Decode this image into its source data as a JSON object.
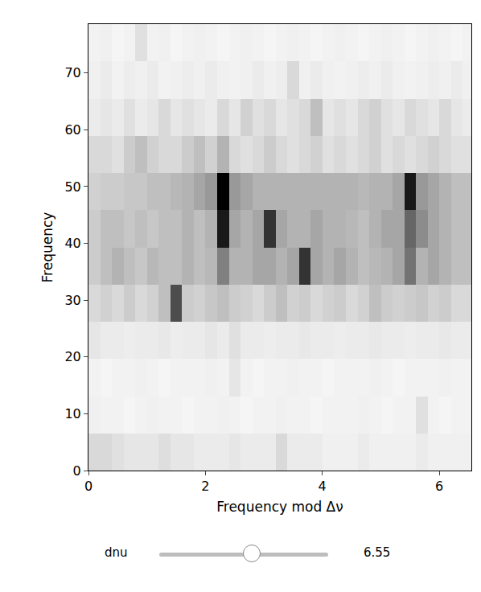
{
  "chart_data": {
    "type": "heatmap",
    "x_label": "Frequency mod Δν",
    "y_label": "Frequency",
    "x": [
      0.1,
      0.3,
      0.5,
      0.7,
      0.9,
      1.1,
      1.3,
      1.5,
      1.7,
      1.9,
      2.1,
      2.3,
      2.5,
      2.7,
      2.9,
      3.1,
      3.3,
      3.5,
      3.7,
      3.9,
      4.1,
      4.3,
      4.5,
      4.7,
      4.9,
      5.1,
      5.3,
      5.5,
      5.7,
      5.9,
      6.1,
      6.3,
      6.5
    ],
    "y": [
      3.275,
      9.825,
      16.375,
      22.925,
      29.475,
      36.025,
      42.575,
      49.125,
      55.675,
      62.225,
      68.775,
      75.325
    ],
    "z": [
      [
        1.5,
        1.5,
        1.2,
        1,
        1,
        1,
        1.3,
        1,
        1,
        0.8,
        0.8,
        0.8,
        1,
        0.8,
        0.8,
        0.8,
        1.5,
        0.8,
        0.8,
        0.8,
        0.6,
        0.6,
        0.6,
        0.8,
        0.6,
        0.6,
        0.6,
        0.6,
        0.8,
        0.6,
        0.6,
        0.6,
        0.6
      ],
      [
        0.6,
        0.5,
        0.5,
        0.4,
        0.5,
        0.6,
        0.5,
        0.5,
        0.4,
        0.5,
        0.5,
        0.6,
        0.5,
        0.4,
        0.5,
        0.5,
        0.6,
        0.5,
        0.5,
        0.4,
        0.5,
        0.5,
        0.5,
        0.6,
        0.5,
        0.4,
        0.5,
        0.5,
        1.2,
        0.5,
        0.4,
        0.5,
        0.5
      ],
      [
        0.5,
        0.4,
        0.5,
        0.5,
        0.6,
        0.5,
        0.4,
        0.5,
        0.5,
        0.5,
        0.6,
        0.5,
        1,
        0.5,
        0.4,
        0.5,
        0.5,
        0.6,
        0.5,
        0.5,
        0.4,
        0.5,
        0.5,
        0.5,
        0.6,
        0.5,
        0.4,
        0.5,
        0.5,
        0.5,
        0.6,
        0.5,
        0.5
      ],
      [
        1,
        0.8,
        0.8,
        0.7,
        0.8,
        0.8,
        0.9,
        0.7,
        0.8,
        0.8,
        1,
        0.8,
        1.2,
        0.8,
        0.8,
        0.7,
        0.8,
        0.8,
        0.9,
        0.8,
        0.8,
        0.7,
        0.8,
        0.8,
        0.9,
        0.8,
        0.8,
        0.7,
        0.8,
        0.8,
        0.9,
        0.8,
        0.8
      ],
      [
        1.5,
        1.8,
        1.5,
        2,
        1.5,
        1.8,
        2.5,
        7,
        2,
        1.8,
        2.2,
        2.5,
        2,
        1.8,
        1.5,
        2,
        2.5,
        1.8,
        2,
        1.5,
        1.8,
        2,
        1.5,
        1.8,
        2.5,
        2,
        1.8,
        2,
        2.2,
        1.8,
        2,
        1.5,
        1.5
      ],
      [
        2,
        2.5,
        3,
        2.5,
        2.2,
        2.8,
        2.5,
        2.5,
        3,
        2.5,
        2.8,
        5,
        3,
        3,
        3.5,
        3.5,
        3,
        3.5,
        8,
        3.5,
        3,
        3.5,
        3,
        2.5,
        2.8,
        3,
        3.5,
        5.5,
        3,
        3.5,
        3,
        2.5,
        2.5
      ],
      [
        2,
        2.5,
        2.5,
        2.2,
        2.5,
        2.2,
        2.5,
        2.5,
        3,
        2.5,
        3,
        9,
        3.5,
        3,
        3.5,
        8,
        3.5,
        3,
        3,
        3.5,
        3,
        3,
        2.8,
        2.5,
        3,
        3.5,
        3.5,
        6,
        4.5,
        3.5,
        3,
        2.5,
        2.5
      ],
      [
        1.8,
        2,
        2,
        2.2,
        2.2,
        2.5,
        2.5,
        2.8,
        3,
        3.5,
        4,
        10,
        4,
        3.5,
        3,
        3,
        3,
        3,
        3,
        3,
        3,
        3,
        3,
        2.8,
        3,
        3,
        3.5,
        9,
        4,
        3.5,
        3,
        2.5,
        2.5
      ],
      [
        1.5,
        1.5,
        1.2,
        2,
        2.5,
        1.8,
        1.5,
        1.5,
        2,
        2.5,
        1.8,
        3,
        1.5,
        1.2,
        1.5,
        2,
        1.5,
        1.2,
        1.5,
        1.8,
        1.2,
        1.5,
        1.2,
        1.5,
        1.8,
        1.2,
        1.5,
        1.2,
        1.5,
        1.8,
        1.5,
        1.2,
        1.2
      ],
      [
        0.8,
        1,
        0.8,
        1.2,
        0.8,
        1,
        1.5,
        1,
        1.2,
        1,
        0.8,
        1.5,
        1,
        1.8,
        1.2,
        1.5,
        1,
        1.2,
        1.5,
        2.5,
        1,
        1.2,
        1,
        1.5,
        1.8,
        1.2,
        1,
        1.5,
        1.2,
        1,
        1.5,
        1,
        0.8
      ],
      [
        0.6,
        0.8,
        0.5,
        0.7,
        0.6,
        0.8,
        0.5,
        0.6,
        0.7,
        0.6,
        0.8,
        0.6,
        0.5,
        0.6,
        0.8,
        0.6,
        0.7,
        1.5,
        0.6,
        0.8,
        0.6,
        0.5,
        0.6,
        0.7,
        0.6,
        0.8,
        0.6,
        0.5,
        0.6,
        0.7,
        0.6,
        0.8,
        0.6
      ],
      [
        0.5,
        0.6,
        0.4,
        0.5,
        1.2,
        0.5,
        0.6,
        0.4,
        0.5,
        0.6,
        0.5,
        0.4,
        0.5,
        0.6,
        0.5,
        0.4,
        0.5,
        0.6,
        0.5,
        0.4,
        0.5,
        0.6,
        0.5,
        0.4,
        0.5,
        0.6,
        0.5,
        0.4,
        0.5,
        0.6,
        0.5,
        0.4,
        0.5
      ]
    ],
    "zlim": [
      0,
      10
    ],
    "xlim": [
      0,
      6.55
    ],
    "ylim": [
      0,
      78.6
    ],
    "xticks": [
      0,
      2,
      4,
      6
    ],
    "yticks": [
      0,
      10,
      20,
      30,
      40,
      50,
      60,
      70
    ],
    "slider": {
      "label": "dnu",
      "value": 6.55
    }
  }
}
